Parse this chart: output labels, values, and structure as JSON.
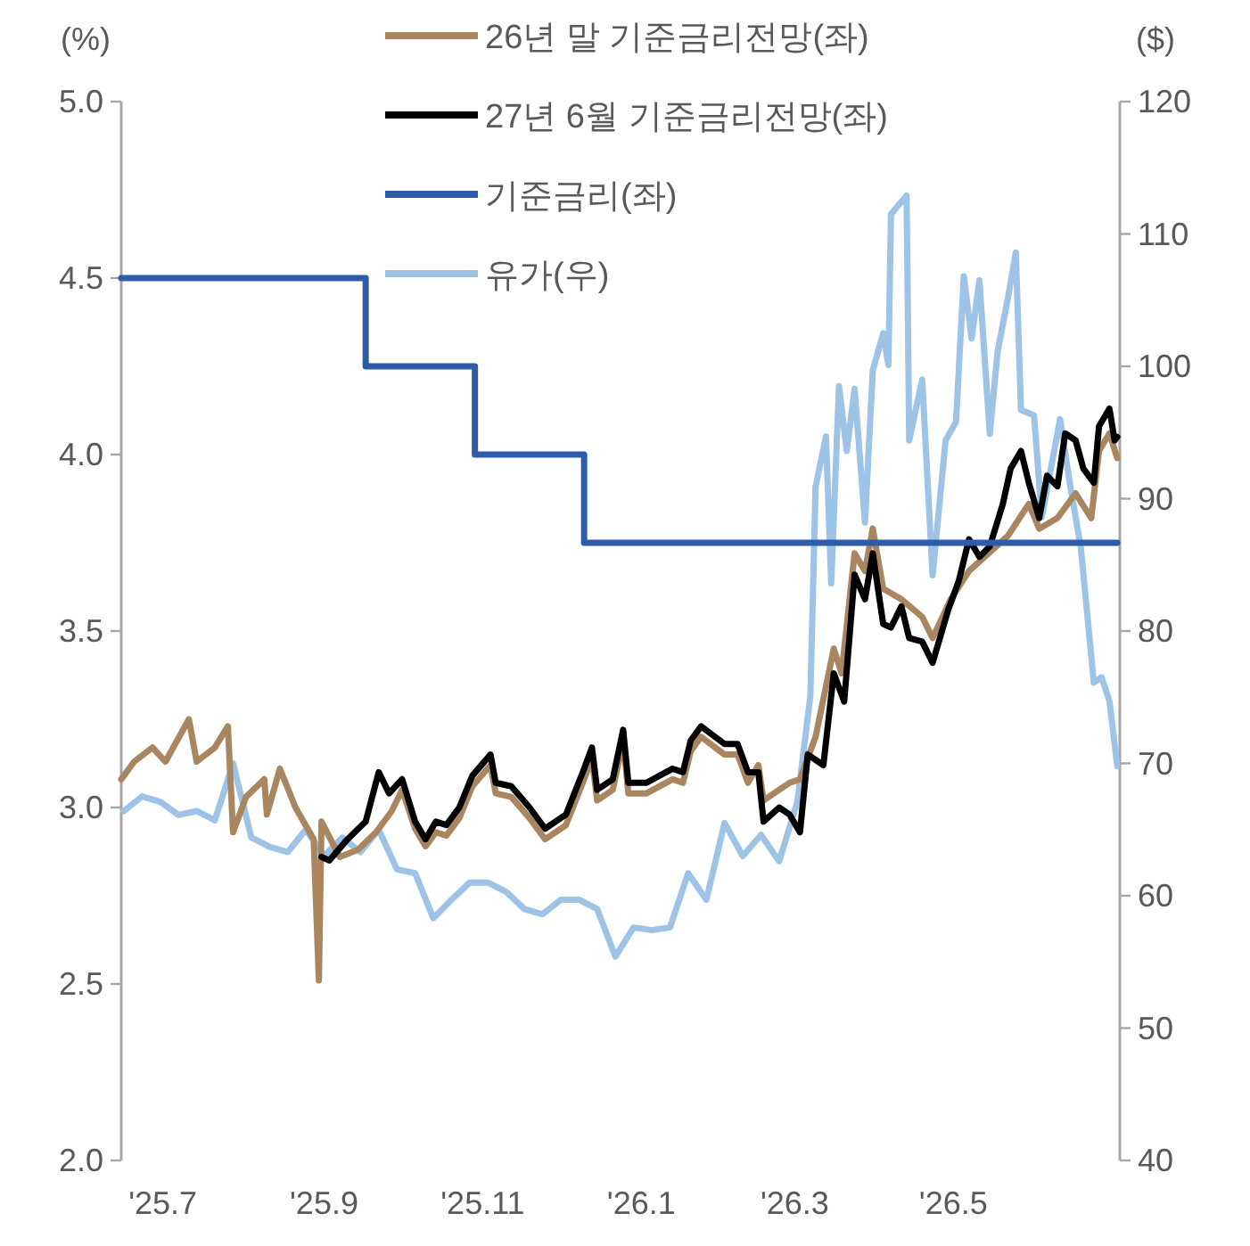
{
  "chart_data": {
    "type": "line",
    "ylabel": "(%)",
    "y2label": "($)",
    "legend": "top",
    "xlim": [
      "2025-06-15",
      "2026-07-04"
    ],
    "xticks": [
      {
        "value": "2025-07-01",
        "label": "'25.7"
      },
      {
        "value": "2025-09-01",
        "label": "'25.9"
      },
      {
        "value": "2025-11-01",
        "label": "'25.11"
      },
      {
        "value": "2026-01-01",
        "label": "'26.1"
      },
      {
        "value": "2026-03-01",
        "label": "'26.3"
      },
      {
        "value": "2026-05-01",
        "label": "'26.5"
      }
    ],
    "ylim": [
      2,
      5
    ],
    "yticks": [
      {
        "value": 2,
        "label": "2.0"
      },
      {
        "value": 2.5,
        "label": "2.5"
      },
      {
        "value": 3,
        "label": "3.0"
      },
      {
        "value": 3.5,
        "label": "3.5"
      },
      {
        "value": 4,
        "label": "4.0"
      },
      {
        "value": 4.5,
        "label": "4.5"
      },
      {
        "value": 5,
        "label": "5.0"
      }
    ],
    "y2lim": [
      40,
      120
    ],
    "y2ticks": [
      40,
      50,
      60,
      70,
      80,
      90,
      100,
      110,
      120
    ],
    "series": [
      {
        "name": "26년 말 기준금리전망(좌)",
        "color": "#a98660",
        "type": "line",
        "x": [
          "2025-06-15",
          "2025-06-20",
          "2025-06-27",
          "2025-07-02",
          "2025-07-11",
          "2025-07-14",
          "2025-07-21",
          "2025-07-26",
          "2025-07-28",
          "2025-08-02",
          "2025-08-09",
          "2025-08-10",
          "2025-08-15",
          "2025-08-21",
          "2025-08-28",
          "2025-08-30",
          "2025-08-31",
          "2025-09-07",
          "2025-09-14",
          "2025-09-21",
          "2025-09-27",
          "2025-10-01",
          "2025-10-06",
          "2025-10-10",
          "2025-10-14",
          "2025-10-18",
          "2025-10-23",
          "2025-10-28",
          "2025-11-04",
          "2025-11-06",
          "2025-11-12",
          "2025-11-19",
          "2025-11-25",
          "2025-12-03",
          "2025-12-10",
          "2025-12-13",
          "2025-12-15",
          "2025-12-21",
          "2025-12-25",
          "2025-12-27",
          "2026-01-03",
          "2026-01-13",
          "2026-01-17",
          "2026-01-20",
          "2026-01-24",
          "2026-02-02",
          "2026-02-07",
          "2026-02-11",
          "2026-02-15",
          "2026-02-17",
          "2026-02-23",
          "2026-02-27",
          "2026-03-03",
          "2026-03-09",
          "2026-03-16",
          "2026-03-19",
          "2026-03-24",
          "2026-03-28",
          "2026-03-31",
          "2026-04-04",
          "2026-04-11",
          "2026-04-19",
          "2026-04-23",
          "2026-04-30",
          "2026-05-07",
          "2026-05-13",
          "2026-05-22",
          "2026-05-30",
          "2026-06-03",
          "2026-06-10",
          "2026-06-17",
          "2026-06-23",
          "2026-06-26",
          "2026-06-30",
          "2026-07-03"
        ],
        "values": [
          3.08,
          3.13,
          3.17,
          3.13,
          3.25,
          3.13,
          3.17,
          3.23,
          2.93,
          3.03,
          3.08,
          2.98,
          3.11,
          3.0,
          2.91,
          2.51,
          2.96,
          2.86,
          2.88,
          2.93,
          2.99,
          3.05,
          2.94,
          2.89,
          2.93,
          2.92,
          2.97,
          3.06,
          3.12,
          3.04,
          3.03,
          2.97,
          2.91,
          2.95,
          3.08,
          3.14,
          3.02,
          3.05,
          3.19,
          3.04,
          3.04,
          3.08,
          3.07,
          3.16,
          3.2,
          3.15,
          3.15,
          3.07,
          3.12,
          3.02,
          3.05,
          3.07,
          3.08,
          3.2,
          3.45,
          3.38,
          3.72,
          3.67,
          3.79,
          3.62,
          3.59,
          3.54,
          3.48,
          3.59,
          3.67,
          3.71,
          3.77,
          3.86,
          3.79,
          3.82,
          3.89,
          3.82,
          4.01,
          4.06,
          3.99
        ]
      },
      {
        "name": "27년 6월 기준금리전망(좌)",
        "color": "#000000",
        "type": "line",
        "x": [
          "2025-08-31",
          "2025-09-03",
          "2025-09-10",
          "2025-09-17",
          "2025-09-22",
          "2025-09-26",
          "2025-10-01",
          "2025-10-06",
          "2025-10-10",
          "2025-10-14",
          "2025-10-18",
          "2025-10-23",
          "2025-10-28",
          "2025-11-04",
          "2025-11-06",
          "2025-11-12",
          "2025-11-19",
          "2025-11-25",
          "2025-12-03",
          "2025-12-10",
          "2025-12-13",
          "2025-12-15",
          "2025-12-21",
          "2025-12-25",
          "2025-12-27",
          "2026-01-03",
          "2026-01-13",
          "2026-01-17",
          "2026-01-20",
          "2026-01-24",
          "2026-02-02",
          "2026-02-07",
          "2026-02-11",
          "2026-02-15",
          "2026-02-17",
          "2026-02-23",
          "2026-02-27",
          "2026-03-03",
          "2026-03-06",
          "2026-03-12",
          "2026-03-16",
          "2026-03-20",
          "2026-03-24",
          "2026-03-28",
          "2026-03-31",
          "2026-04-04",
          "2026-04-07",
          "2026-04-11",
          "2026-04-14",
          "2026-04-19",
          "2026-04-23",
          "2026-04-29",
          "2026-05-03",
          "2026-05-07",
          "2026-05-11",
          "2026-05-15",
          "2026-05-20",
          "2026-05-23",
          "2026-05-27",
          "2026-05-30",
          "2026-06-03",
          "2026-06-06",
          "2026-06-10",
          "2026-06-13",
          "2026-06-17",
          "2026-06-20",
          "2026-06-24",
          "2026-06-26",
          "2026-06-30",
          "2026-07-02",
          "2026-07-03"
        ],
        "values": [
          2.86,
          2.85,
          2.91,
          2.96,
          3.1,
          3.04,
          3.08,
          2.96,
          2.91,
          2.96,
          2.95,
          3.0,
          3.09,
          3.15,
          3.07,
          3.06,
          3.0,
          2.94,
          2.98,
          3.11,
          3.17,
          3.05,
          3.08,
          3.22,
          3.07,
          3.07,
          3.11,
          3.1,
          3.19,
          3.23,
          3.18,
          3.18,
          3.1,
          3.1,
          2.96,
          3.0,
          2.98,
          2.93,
          3.15,
          3.12,
          3.38,
          3.3,
          3.66,
          3.59,
          3.72,
          3.52,
          3.51,
          3.57,
          3.48,
          3.47,
          3.41,
          3.56,
          3.64,
          3.76,
          3.71,
          3.74,
          3.86,
          3.96,
          4.01,
          3.92,
          3.82,
          3.94,
          3.91,
          4.06,
          4.04,
          3.96,
          3.92,
          4.08,
          4.13,
          4.04,
          4.05
        ]
      },
      {
        "name": "기준금리(좌)",
        "color": "#2e5ca8",
        "type": "step",
        "x": [
          "2025-06-15",
          "2025-09-17",
          "2025-10-29",
          "2025-12-10",
          "2026-07-03"
        ],
        "values": [
          4.5,
          4.25,
          4.0,
          3.75,
          3.75
        ]
      },
      {
        "name": "유가(우)",
        "color": "#9dc3e6",
        "type": "line",
        "axis": "y2",
        "x": [
          "2025-06-16",
          "2025-06-23",
          "2025-06-30",
          "2025-07-07",
          "2025-07-14",
          "2025-07-21",
          "2025-07-28",
          "2025-08-04",
          "2025-08-11",
          "2025-08-18",
          "2025-08-25",
          "2025-09-01",
          "2025-09-08",
          "2025-09-15",
          "2025-09-22",
          "2025-09-29",
          "2025-10-06",
          "2025-10-13",
          "2025-10-20",
          "2025-10-27",
          "2025-11-03",
          "2025-11-10",
          "2025-11-17",
          "2025-11-24",
          "2025-12-01",
          "2025-12-08",
          "2025-12-15",
          "2025-12-22",
          "2025-12-29",
          "2026-01-05",
          "2026-01-12",
          "2026-01-19",
          "2026-01-26",
          "2026-02-02",
          "2026-02-09",
          "2026-02-16",
          "2026-02-23",
          "2026-03-02",
          "2026-03-07",
          "2026-03-09",
          "2026-03-13",
          "2026-03-15",
          "2026-03-18",
          "2026-03-21",
          "2026-03-24",
          "2026-03-28",
          "2026-03-31",
          "2026-04-04",
          "2026-04-06",
          "2026-04-07",
          "2026-04-13",
          "2026-04-14",
          "2026-04-19",
          "2026-04-23",
          "2026-04-28",
          "2026-05-02",
          "2026-05-05",
          "2026-05-08",
          "2026-05-11",
          "2026-05-15",
          "2026-05-18",
          "2026-05-22",
          "2026-05-25",
          "2026-05-27",
          "2026-06-01",
          "2026-06-04",
          "2026-06-11",
          "2026-06-15",
          "2026-06-19",
          "2026-06-24",
          "2026-06-27",
          "2026-06-30",
          "2026-07-03"
        ],
        "values": [
          66.4,
          67.5,
          67.1,
          66.1,
          66.4,
          65.7,
          70,
          64.4,
          63.7,
          63.3,
          65,
          63,
          64.4,
          63.3,
          65,
          62,
          61.7,
          58.3,
          59.7,
          61,
          61,
          60.3,
          59,
          58.6,
          59.7,
          59.7,
          59,
          55.4,
          57.6,
          57.4,
          57.6,
          61.7,
          59.7,
          65.5,
          63,
          64.6,
          62.6,
          67.1,
          75.1,
          90.9,
          94.7,
          83.6,
          98.5,
          93.6,
          98.3,
          88.2,
          99.7,
          102.5,
          100.1,
          111.5,
          112.9,
          94.4,
          99,
          84.2,
          94.4,
          95.8,
          106.8,
          102.1,
          106.5,
          94.9,
          101.1,
          105.2,
          108.6,
          96.7,
          96.3,
          88.6,
          96,
          90.9,
          86.3,
          76.1,
          76.5,
          74.7,
          69.8
        ]
      }
    ]
  }
}
